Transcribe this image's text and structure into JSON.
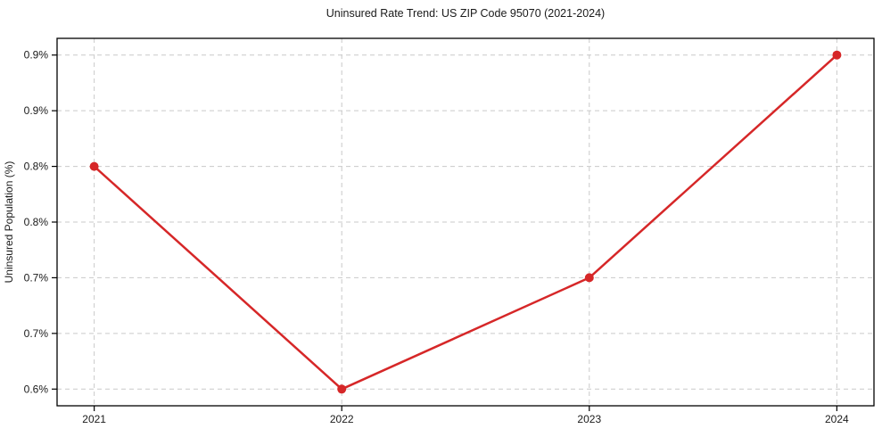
{
  "chart_data": {
    "type": "line",
    "title": "Uninsured Rate Trend: US ZIP Code 95070 (2021-2024)",
    "xlabel": "",
    "ylabel": "Uninsured Population (%)",
    "x": [
      2021,
      2022,
      2023,
      2024
    ],
    "values": [
      0.8,
      0.6,
      0.7,
      0.9
    ],
    "xlim": [
      2020.85,
      2024.15
    ],
    "ylim": [
      0.585,
      0.915
    ],
    "xticks": {
      "values": [
        2021,
        2022,
        2023,
        2024
      ],
      "labels": [
        "2021",
        "2022",
        "2023",
        "2024"
      ]
    },
    "yticks": {
      "values": [
        0.6,
        0.65,
        0.7,
        0.75,
        0.8,
        0.85,
        0.9
      ],
      "labels": [
        "0.6%",
        "0.7%",
        "0.7%",
        "0.8%",
        "0.8%",
        "0.9%",
        "0.9%"
      ]
    },
    "grid": true,
    "grid_style": "dashed",
    "legend": false,
    "colors": {
      "line": "#d62728",
      "marker": "#d62728",
      "grid": "#c9c9c9",
      "spine": "#000000",
      "text": "#1a1a1a",
      "background": "#ffffff"
    }
  }
}
